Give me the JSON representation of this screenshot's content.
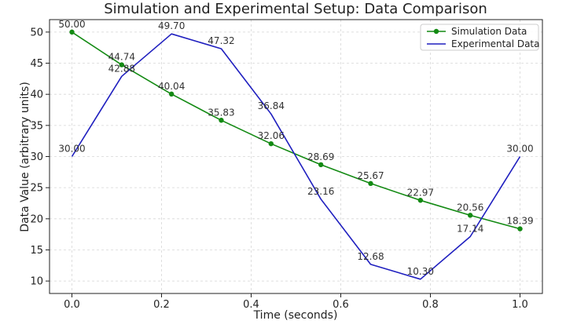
{
  "chart_data": {
    "type": "line",
    "title": "Simulation and Experimental Setup: Data Comparison",
    "xlabel": "Time (seconds)",
    "ylabel": "Data Value (arbitrary units)",
    "xlim": [
      -0.05,
      1.05
    ],
    "ylim": [
      8,
      52
    ],
    "xticks": [
      0.0,
      0.2,
      0.4,
      0.6,
      0.8,
      1.0
    ],
    "xtick_labels": [
      "0.0",
      "0.2",
      "0.4",
      "0.6",
      "0.8",
      "1.0"
    ],
    "yticks": [
      10,
      15,
      20,
      25,
      30,
      35,
      40,
      45,
      50
    ],
    "ytick_labels": [
      "10",
      "15",
      "20",
      "25",
      "30",
      "35",
      "40",
      "45",
      "50"
    ],
    "grid": true,
    "legend_position": "top-right",
    "x": [
      0.0,
      0.1111,
      0.2222,
      0.3333,
      0.4444,
      0.5556,
      0.6667,
      0.7778,
      0.8889,
      1.0
    ],
    "series": [
      {
        "name": "Simulation Data",
        "color": "#138a13",
        "markers": true,
        "values": [
          50.0,
          44.74,
          40.04,
          35.83,
          32.06,
          28.69,
          25.67,
          22.97,
          20.56,
          18.39
        ],
        "labels": [
          "50.00",
          "44.74",
          "40.04",
          "35.83",
          "32.06",
          "28.69",
          "25.67",
          "22.97",
          "20.56",
          "18.39"
        ]
      },
      {
        "name": "Experimental Data",
        "color": "#1f1fbf",
        "markers": false,
        "values": [
          30.0,
          42.88,
          49.7,
          47.32,
          36.84,
          23.16,
          12.68,
          10.3,
          17.14,
          30.0
        ],
        "labels": [
          "30.00",
          "42.88",
          "49.70",
          "47.32",
          "36.84",
          "23.16",
          "12.68",
          "10.30",
          "17.14",
          "30.00"
        ]
      }
    ]
  }
}
